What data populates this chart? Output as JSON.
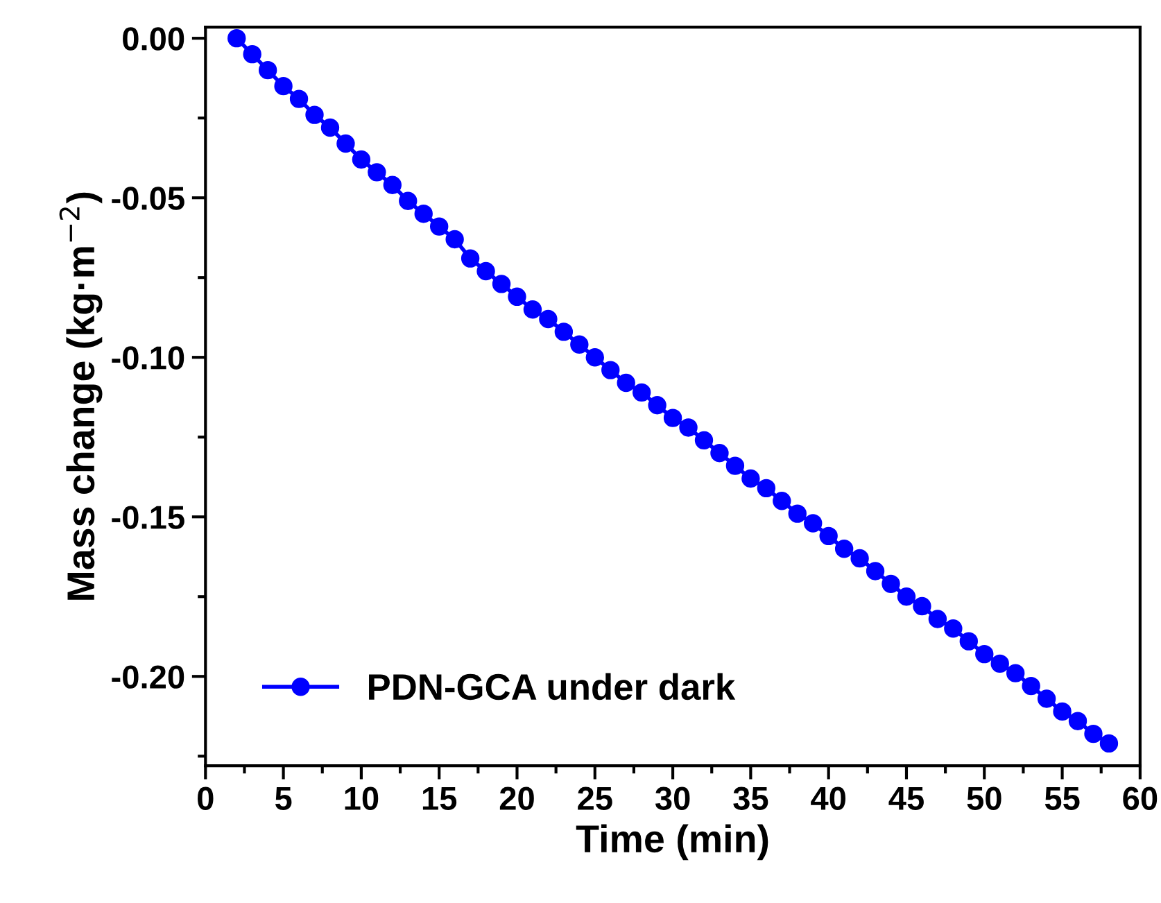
{
  "chart_data": {
    "type": "line",
    "xlabel": "Time (min)",
    "ylabel": "Mass change (kg·m$^{−2}$)",
    "x": [
      2,
      3,
      4,
      5,
      6,
      7,
      8,
      9,
      10,
      11,
      12,
      13,
      14,
      15,
      16,
      17,
      18,
      19,
      20,
      21,
      22,
      23,
      24,
      25,
      26,
      27,
      28,
      29,
      30,
      31,
      32,
      33,
      34,
      35,
      36,
      37,
      38,
      39,
      40,
      41,
      42,
      43,
      44,
      45,
      46,
      47,
      48,
      49,
      50,
      51,
      52,
      53,
      54,
      55,
      56,
      57,
      58
    ],
    "series": [
      {
        "name": "PDN-GCA under dark",
        "color": "#0000ff",
        "values": [
          0,
          -0.005,
          -0.01,
          -0.015,
          -0.019,
          -0.024,
          -0.028,
          -0.033,
          -0.038,
          -0.042,
          -0.046,
          -0.051,
          -0.055,
          -0.059,
          -0.063,
          -0.069,
          -0.073,
          -0.077,
          -0.081,
          -0.085,
          -0.088,
          -0.092,
          -0.096,
          -0.1,
          -0.104,
          -0.108,
          -0.111,
          -0.115,
          -0.119,
          -0.122,
          -0.126,
          -0.13,
          -0.134,
          -0.138,
          -0.141,
          -0.145,
          -0.149,
          -0.152,
          -0.156,
          -0.16,
          -0.163,
          -0.167,
          -0.171,
          -0.175,
          -0.178,
          -0.182,
          -0.185,
          -0.189,
          -0.193,
          -0.196,
          -0.199,
          -0.203,
          -0.207,
          -0.211,
          -0.214,
          -0.218,
          -0.221
        ]
      }
    ],
    "xlim": [
      0,
      60
    ],
    "xticks": [
      0,
      5,
      10,
      15,
      20,
      25,
      30,
      35,
      40,
      45,
      50,
      55,
      60
    ],
    "ylim": [
      -0.228,
      0.0035
    ],
    "yticks": [
      {
        "value": 0,
        "label": "0.00"
      },
      {
        "value": -0.05,
        "label": "-0.05"
      },
      {
        "value": -0.1,
        "label": "-0.10"
      },
      {
        "value": -0.15,
        "label": "-0.15"
      },
      {
        "value": -0.2,
        "label": "-0.20"
      }
    ],
    "marker": "circle",
    "line_style": "solid",
    "legend": "bottom left",
    "grid": false
  }
}
